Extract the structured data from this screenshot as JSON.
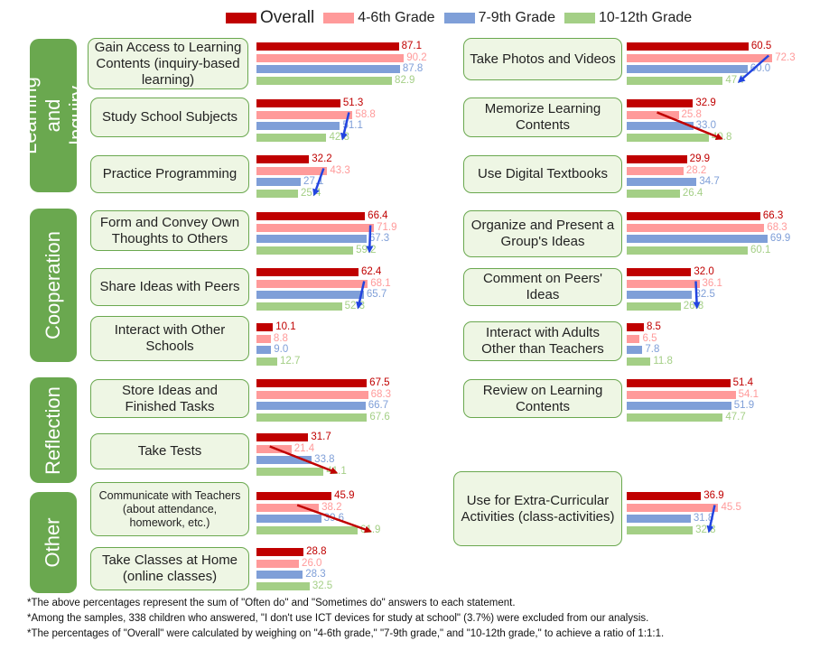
{
  "chart_data": {
    "type": "bar",
    "orientation": "horizontal",
    "series_names": [
      "Overall",
      "4-6th Grade",
      "7-9th Grade",
      "10-12th Grade"
    ],
    "colors": {
      "overall": "#c00000",
      "grade_4_6": "#ff9a9a",
      "grade_7_9": "#7f9fd8",
      "grade_10_12": "#a4cf86",
      "section": "#6aa84f",
      "box_fill": "#eef6e4",
      "arrow_up": "#2244e0",
      "arrow_down": "#c00000"
    },
    "sections": [
      "Learning and Inquiry",
      "Cooperation",
      "Reflection",
      "Other"
    ],
    "items": [
      {
        "label": "Gain Access to Learning Contents (inquiry-based learning)",
        "section": "Learning and Inquiry",
        "values": [
          "87.1",
          "90.2",
          "87.8",
          "82.9"
        ],
        "trend": "none"
      },
      {
        "label": "Take Photos and Videos",
        "section": "Learning and Inquiry",
        "values": [
          "60.5",
          "72.3",
          "60.0",
          "47.7"
        ],
        "trend": "down"
      },
      {
        "label": "Study School Subjects",
        "section": "Learning and Inquiry",
        "values": [
          "51.3",
          "58.8",
          "51.1",
          "42.8"
        ],
        "trend": "down"
      },
      {
        "label": "Memorize Learning Contents",
        "section": "Learning and Inquiry",
        "values": [
          "32.9",
          "25.8",
          "33.0",
          "40.8"
        ],
        "trend": "up"
      },
      {
        "label": "Practice Programming",
        "section": "Learning and Inquiry",
        "values": [
          "32.2",
          "43.3",
          "27.1",
          "25.4"
        ],
        "trend": "down"
      },
      {
        "label": "Use Digital Textbooks",
        "section": "Learning and Inquiry",
        "values": [
          "29.9",
          "28.2",
          "34.7",
          "26.4"
        ],
        "trend": "none"
      },
      {
        "label": "Form and Convey Own Thoughts to Others",
        "section": "Cooperation",
        "values": [
          "66.4",
          "71.9",
          "67.3",
          "59.2"
        ],
        "trend": "down"
      },
      {
        "label": "Organize and Present a Group's Ideas",
        "section": "Cooperation",
        "values": [
          "66.3",
          "68.3",
          "69.9",
          "60.1"
        ],
        "trend": "none"
      },
      {
        "label": "Share Ideas with Peers",
        "section": "Cooperation",
        "values": [
          "62.4",
          "68.1",
          "65.7",
          "52.3"
        ],
        "trend": "down"
      },
      {
        "label": "Comment on Peers' Ideas",
        "section": "Cooperation",
        "values": [
          "32.0",
          "36.1",
          "32.5",
          "26.8"
        ],
        "trend": "down"
      },
      {
        "label": "Interact with Other Schools",
        "section": "Cooperation",
        "values": [
          "10.1",
          "8.8",
          "9.0",
          "12.7"
        ],
        "trend": "none"
      },
      {
        "label": "Interact with Adults Other than Teachers",
        "section": "Cooperation",
        "values": [
          "8.5",
          "6.5",
          "7.8",
          "11.8"
        ],
        "trend": "none"
      },
      {
        "label": "Store Ideas and Finished Tasks",
        "section": "Reflection",
        "values": [
          "67.5",
          "68.3",
          "66.7",
          "67.6"
        ],
        "trend": "none"
      },
      {
        "label": "Review on Learning Contents",
        "section": "Reflection",
        "values": [
          "51.4",
          "54.1",
          "51.9",
          "47.7"
        ],
        "trend": "none"
      },
      {
        "label": "Take Tests",
        "section": "Reflection",
        "values": [
          "31.7",
          "21.4",
          "33.8",
          "41.1"
        ],
        "trend": "up"
      },
      {
        "label": "Communicate with Teachers (about attendance, homework, etc.)",
        "section": "Other",
        "values": [
          "45.9",
          "38.2",
          "39.6",
          "61.9"
        ],
        "trend": "up"
      },
      {
        "label": "Use for Extra-Curricular Activities (class-activities)",
        "section": "Other",
        "values": [
          "36.9",
          "45.5",
          "31.8",
          "32.8"
        ],
        "trend": "down"
      },
      {
        "label": "Take Classes at Home (online classes)",
        "section": "Other",
        "values": [
          "28.8",
          "26.0",
          "28.3",
          "32.5"
        ],
        "trend": "none"
      }
    ],
    "footnotes": [
      "*The above percentages represent the sum of \"Often do\" and \"Sometimes do\" answers to each statement.",
      "*Among the samples, 338 children who answered, \"I don't use ICT devices for study at school\" (3.7%) were excluded from our analysis.",
      "*The percentages of \"Overall\" were calculated by weighing on \"4-6th grade,\" \"7-9th grade,\" and \"10-12th grade,\" to achieve a ratio of 1:1:1."
    ]
  }
}
